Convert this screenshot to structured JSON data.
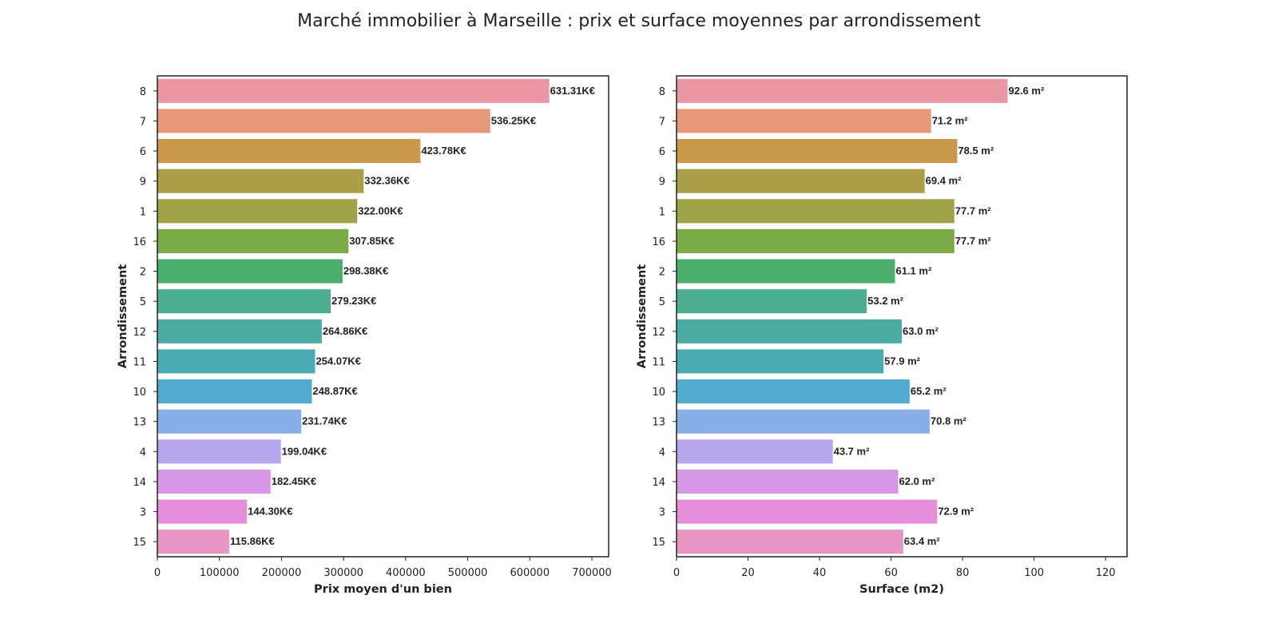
{
  "title": "Marché immobilier à Marseille : prix et surface moyennes par arrondissement",
  "chart_data": [
    {
      "type": "bar",
      "orientation": "horizontal",
      "categories": [
        "8",
        "7",
        "6",
        "9",
        "1",
        "16",
        "2",
        "5",
        "12",
        "11",
        "10",
        "13",
        "4",
        "14",
        "3",
        "15"
      ],
      "values": [
        631310,
        536250,
        423780,
        332360,
        322000,
        307850,
        298380,
        279230,
        264860,
        254070,
        248870,
        231740,
        199040,
        182450,
        144300,
        115860
      ],
      "labels": [
        "631.31K€",
        "536.25K€",
        "423.78K€",
        "332.36K€",
        "322.00K€",
        "307.85K€",
        "298.38K€",
        "279.23K€",
        "264.86K€",
        "254.07K€",
        "248.87K€",
        "231.74K€",
        "199.04K€",
        "182.45K€",
        "144.30K€",
        "115.86K€"
      ],
      "xlabel": "Prix moyen d'un bien",
      "ylabel": "Arrondissement",
      "xlim": [
        0,
        727000
      ],
      "xticks": [
        0,
        100000,
        200000,
        300000,
        400000,
        500000,
        600000,
        700000
      ],
      "xtick_labels": [
        "0",
        "100000",
        "200000",
        "300000",
        "400000",
        "500000",
        "600000",
        "700000"
      ],
      "grid": false,
      "colors": [
        "#eb96a3",
        "#e8997a",
        "#c9994a",
        "#aa9e48",
        "#9fa348",
        "#7bab48",
        "#4bae6d",
        "#4caf8f",
        "#4aaca2",
        "#4babb3",
        "#51abcf",
        "#89afe8",
        "#b6a7ec",
        "#d697e6",
        "#e78edb",
        "#e995c3"
      ]
    },
    {
      "type": "bar",
      "orientation": "horizontal",
      "categories": [
        "8",
        "7",
        "6",
        "9",
        "1",
        "16",
        "2",
        "5",
        "12",
        "11",
        "10",
        "13",
        "4",
        "14",
        "3",
        "15"
      ],
      "values": [
        92.6,
        71.2,
        78.5,
        69.4,
        77.7,
        77.7,
        61.1,
        53.2,
        63.0,
        57.9,
        65.2,
        70.8,
        43.7,
        62.0,
        72.9,
        63.4
      ],
      "labels": [
        "92.6 m²",
        "71.2 m²",
        "78.5 m²",
        "69.4 m²",
        "77.7 m²",
        "77.7 m²",
        "61.1 m²",
        "53.2 m²",
        "63.0 m²",
        "57.9 m²",
        "65.2 m²",
        "70.8 m²",
        "43.7 m²",
        "62.0 m²",
        "72.9 m²",
        "63.4 m²"
      ],
      "xlabel": "Surface (m2)",
      "ylabel": "Arrondissement",
      "xlim": [
        0,
        126
      ],
      "xticks": [
        0,
        20,
        40,
        60,
        80,
        100,
        120
      ],
      "xtick_labels": [
        "0",
        "20",
        "40",
        "60",
        "80",
        "100",
        "120"
      ],
      "grid": false,
      "colors": [
        "#eb96a3",
        "#e8997a",
        "#c9994a",
        "#aa9e48",
        "#9fa348",
        "#7bab48",
        "#4bae6d",
        "#4caf8f",
        "#4aaca2",
        "#4babb3",
        "#51abcf",
        "#89afe8",
        "#b6a7ec",
        "#d697e6",
        "#e78edb",
        "#e995c3"
      ]
    }
  ]
}
